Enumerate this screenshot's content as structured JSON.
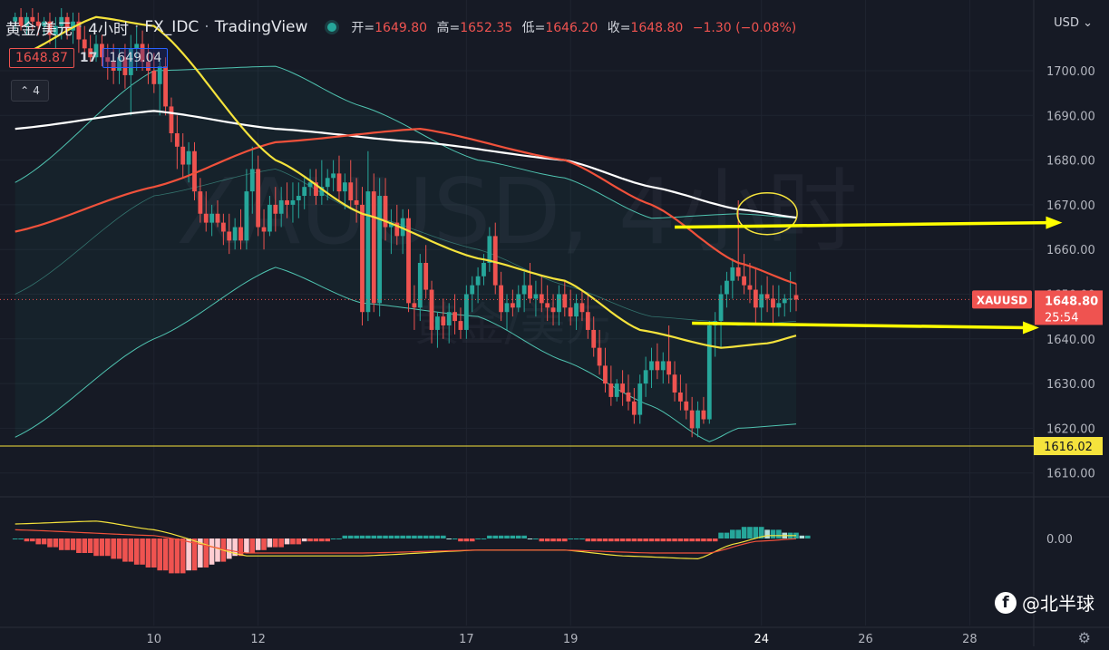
{
  "header": {
    "symbol_name": "黄金/美元",
    "interval": "4小时",
    "source": "FX_IDC",
    "platform": "TradingView",
    "ohlc": {
      "open_label": "开",
      "open": "1649.80",
      "high_label": "高",
      "high": "1652.35",
      "low_label": "低",
      "low": "1646.20",
      "close_label": "收",
      "close": "1648.80",
      "change": "−1.30 (−0.08%)"
    }
  },
  "quote": {
    "bid": "1648.87",
    "spread": "17",
    "ask": "1649.04"
  },
  "indicators_toggle": {
    "count": "4"
  },
  "currency_selector": "USD",
  "watermark": {
    "main": "XAUUSD, 4小时",
    "sub": "黄金/美元"
  },
  "brand": {
    "label": "@北半球"
  },
  "colors": {
    "background": "#161a25",
    "up": "#26a69a",
    "down": "#ef5350",
    "ma_white": "#ffffff",
    "ma_red": "#f0513b",
    "ma_yellow": "#f5e33c",
    "bollinger": "#4fc3b0",
    "arrow": "#ffff00",
    "hline": "#f5e33c"
  },
  "chart_data": [
    {
      "type": "candlestick",
      "title": "XAUUSD, 4小时",
      "y_axis": {
        "currency": "USD",
        "ticks": [
          1610,
          1620,
          1630,
          1640,
          1650,
          1660,
          1670,
          1680,
          1690,
          1700
        ],
        "ylim": [
          1604,
          1714
        ]
      },
      "x_axis": {
        "ticks": [
          {
            "label": "10",
            "index": 24
          },
          {
            "label": "12",
            "index": 42
          },
          {
            "label": "17",
            "index": 78
          },
          {
            "label": "19",
            "index": 96
          },
          {
            "label": "24",
            "index": 129
          },
          {
            "label": "26",
            "index": 147
          },
          {
            "label": "28",
            "index": 165
          }
        ]
      },
      "last_price": {
        "symbol": "XAUUSD",
        "value": "1648.80",
        "countdown": "25:54"
      },
      "horizontal_line": {
        "value": 1616.02,
        "label": "1616.02"
      },
      "annotations": [
        {
          "type": "ellipse",
          "at": {
            "index": 130,
            "value": 1668
          }
        },
        {
          "type": "arrow",
          "from": {
            "index": 114,
            "value": 1665
          },
          "to": {
            "index": 181,
            "value": 1666
          }
        },
        {
          "type": "arrow",
          "from": {
            "index": 117,
            "value": 1643.5
          },
          "to": {
            "index": 177,
            "value": 1642.5
          }
        }
      ],
      "candles_ohlc": [
        [
          1711,
          1713,
          1709,
          1712
        ],
        [
          1712,
          1714,
          1709,
          1710
        ],
        [
          1710,
          1713,
          1708,
          1712
        ],
        [
          1712,
          1714,
          1709,
          1711
        ],
        [
          1711,
          1713,
          1708,
          1710
        ],
        [
          1710,
          1712,
          1708,
          1711
        ],
        [
          1711,
          1713,
          1706,
          1708
        ],
        [
          1708,
          1712,
          1705,
          1710
        ],
        [
          1710,
          1714,
          1707,
          1712
        ],
        [
          1712,
          1713,
          1707,
          1709
        ],
        [
          1709,
          1713,
          1706,
          1711
        ],
        [
          1711,
          1713,
          1704,
          1707
        ],
        [
          1707,
          1710,
          1703,
          1705
        ],
        [
          1705,
          1708,
          1702,
          1703
        ],
        [
          1703,
          1708,
          1702,
          1706
        ],
        [
          1706,
          1708,
          1701,
          1703
        ],
        [
          1703,
          1706,
          1698,
          1702
        ],
        [
          1702,
          1706,
          1697,
          1700
        ],
        [
          1700,
          1705,
          1697,
          1703
        ],
        [
          1703,
          1706,
          1696,
          1699
        ],
        [
          1699,
          1708,
          1690,
          1705
        ],
        [
          1705,
          1710,
          1700,
          1706
        ],
        [
          1706,
          1709,
          1700,
          1702
        ],
        [
          1702,
          1706,
          1697,
          1700
        ],
        [
          1700,
          1704,
          1695,
          1697
        ],
        [
          1697,
          1703,
          1690,
          1701
        ],
        [
          1701,
          1703,
          1690,
          1692
        ],
        [
          1692,
          1694,
          1684,
          1686
        ],
        [
          1686,
          1690,
          1678,
          1683
        ],
        [
          1683,
          1686,
          1676,
          1679
        ],
        [
          1679,
          1684,
          1675,
          1682
        ],
        [
          1682,
          1684,
          1671,
          1673
        ],
        [
          1673,
          1676,
          1666,
          1668
        ],
        [
          1668,
          1673,
          1664,
          1666
        ],
        [
          1666,
          1670,
          1663,
          1668
        ],
        [
          1668,
          1671,
          1665,
          1666
        ],
        [
          1666,
          1668,
          1661,
          1664
        ],
        [
          1664,
          1668,
          1659,
          1662
        ],
        [
          1662,
          1667,
          1660,
          1665
        ],
        [
          1665,
          1669,
          1660,
          1662
        ],
        [
          1662,
          1678,
          1660,
          1673
        ],
        [
          1673,
          1683,
          1668,
          1678
        ],
        [
          1678,
          1681,
          1663,
          1665
        ],
        [
          1665,
          1669,
          1660,
          1664
        ],
        [
          1664,
          1672,
          1663,
          1670
        ],
        [
          1670,
          1674,
          1664,
          1668
        ],
        [
          1668,
          1674,
          1665,
          1671
        ],
        [
          1671,
          1675,
          1667,
          1670
        ],
        [
          1670,
          1675,
          1666,
          1671
        ],
        [
          1671,
          1675,
          1667,
          1672
        ],
        [
          1672,
          1676,
          1669,
          1674
        ],
        [
          1674,
          1678,
          1672,
          1675
        ],
        [
          1675,
          1678,
          1670,
          1672
        ],
        [
          1672,
          1680,
          1670,
          1674
        ],
        [
          1674,
          1678,
          1671,
          1676
        ],
        [
          1676,
          1680,
          1673,
          1677
        ],
        [
          1677,
          1681,
          1671,
          1673
        ],
        [
          1673,
          1677,
          1669,
          1675
        ],
        [
          1675,
          1680,
          1669,
          1671
        ],
        [
          1671,
          1676,
          1666,
          1670
        ],
        [
          1670,
          1674,
          1643,
          1646
        ],
        [
          1646,
          1682,
          1644,
          1673
        ],
        [
          1673,
          1677,
          1646,
          1648
        ],
        [
          1648,
          1676,
          1645,
          1672
        ],
        [
          1672,
          1676,
          1662,
          1665
        ],
        [
          1665,
          1669,
          1659,
          1666
        ],
        [
          1666,
          1670,
          1661,
          1663
        ],
        [
          1663,
          1669,
          1659,
          1667
        ],
        [
          1667,
          1669,
          1646,
          1648
        ],
        [
          1648,
          1652,
          1642,
          1647
        ],
        [
          1647,
          1659,
          1644,
          1657
        ],
        [
          1657,
          1661,
          1649,
          1651
        ],
        [
          1651,
          1653,
          1639,
          1642
        ],
        [
          1642,
          1646,
          1638,
          1645
        ],
        [
          1645,
          1649,
          1640,
          1643
        ],
        [
          1643,
          1648,
          1639,
          1646
        ],
        [
          1646,
          1650,
          1641,
          1644
        ],
        [
          1644,
          1647,
          1640,
          1642
        ],
        [
          1642,
          1652,
          1640,
          1650
        ],
        [
          1650,
          1654,
          1646,
          1652
        ],
        [
          1652,
          1656,
          1648,
          1654
        ],
        [
          1654,
          1659,
          1652,
          1657
        ],
        [
          1657,
          1665,
          1655,
          1663
        ],
        [
          1663,
          1666,
          1650,
          1652
        ],
        [
          1652,
          1655,
          1644,
          1646
        ],
        [
          1646,
          1650,
          1642,
          1648
        ],
        [
          1648,
          1651,
          1645,
          1647
        ],
        [
          1647,
          1652,
          1646,
          1650
        ],
        [
          1650,
          1655,
          1646,
          1652
        ],
        [
          1652,
          1657,
          1648,
          1649
        ],
        [
          1649,
          1653,
          1645,
          1650
        ],
        [
          1650,
          1654,
          1646,
          1648
        ],
        [
          1648,
          1652,
          1644,
          1647
        ],
        [
          1647,
          1650,
          1643,
          1646
        ],
        [
          1646,
          1652,
          1643,
          1650
        ],
        [
          1650,
          1653,
          1645,
          1647
        ],
        [
          1647,
          1651,
          1643,
          1645
        ],
        [
          1645,
          1650,
          1642,
          1648
        ],
        [
          1648,
          1651,
          1644,
          1646
        ],
        [
          1646,
          1650,
          1640,
          1642
        ],
        [
          1642,
          1645,
          1636,
          1638
        ],
        [
          1638,
          1642,
          1632,
          1634
        ],
        [
          1634,
          1638,
          1628,
          1630
        ],
        [
          1630,
          1634,
          1625,
          1627
        ],
        [
          1627,
          1631,
          1626,
          1630
        ],
        [
          1630,
          1633,
          1625,
          1628
        ],
        [
          1628,
          1632,
          1624,
          1626
        ],
        [
          1626,
          1629,
          1621,
          1623
        ],
        [
          1623,
          1632,
          1621,
          1630
        ],
        [
          1630,
          1636,
          1627,
          1633
        ],
        [
          1633,
          1638,
          1629,
          1635
        ],
        [
          1635,
          1639,
          1631,
          1633
        ],
        [
          1633,
          1637,
          1630,
          1635
        ],
        [
          1635,
          1643,
          1630,
          1632
        ],
        [
          1632,
          1635,
          1626,
          1628
        ],
        [
          1628,
          1632,
          1624,
          1626
        ],
        [
          1626,
          1630,
          1622,
          1624
        ],
        [
          1624,
          1627,
          1618,
          1620
        ],
        [
          1620,
          1626,
          1618,
          1624
        ],
        [
          1624,
          1627,
          1621,
          1622
        ],
        [
          1622,
          1644,
          1621,
          1643
        ],
        [
          1643,
          1646,
          1636,
          1644
        ],
        [
          1644,
          1652,
          1638,
          1650
        ],
        [
          1650,
          1655,
          1647,
          1653
        ],
        [
          1653,
          1658,
          1649,
          1656
        ],
        [
          1656,
          1671,
          1653,
          1654
        ],
        [
          1654,
          1659,
          1650,
          1652
        ],
        [
          1652,
          1657,
          1648,
          1651
        ],
        [
          1651,
          1656,
          1643,
          1647
        ],
        [
          1647,
          1652,
          1644,
          1650
        ],
        [
          1650,
          1654,
          1646,
          1649
        ],
        [
          1649,
          1652,
          1643,
          1647
        ],
        [
          1647,
          1652,
          1645,
          1648
        ],
        [
          1648,
          1650,
          1645,
          1649
        ],
        [
          1649,
          1655,
          1646,
          1649
        ],
        [
          1649.8,
          1652.35,
          1646.2,
          1648.8
        ]
      ],
      "moving_averages": [
        {
          "color": "white",
          "values_at": {
            "0": 1687,
            "24": 1691,
            "45": 1687,
            "70": 1684,
            "95": 1680,
            "110": 1674,
            "125": 1669,
            "136": 1667
          }
        },
        {
          "color": "red",
          "values_at": {
            "0": 1664,
            "24": 1674,
            "45": 1684,
            "70": 1687,
            "95": 1680,
            "110": 1670,
            "125": 1657,
            "136": 1652
          }
        },
        {
          "color": "yellow",
          "values_at": {
            "0": 1703,
            "14": 1712,
            "24": 1710,
            "45": 1680,
            "60": 1668,
            "80": 1658,
            "95": 1653,
            "108": 1642,
            "122": 1638,
            "130": 1639,
            "136": 1641
          }
        }
      ],
      "bollinger_bands": {
        "upper_at": {
          "0": 1675,
          "24": 1700,
          "45": 1701,
          "60": 1692,
          "80": 1680,
          "95": 1676,
          "110": 1667,
          "125": 1668,
          "136": 1667
        },
        "lower_at": {
          "0": 1618,
          "24": 1640,
          "45": 1656,
          "60": 1648,
          "80": 1645,
          "95": 1635,
          "110": 1625,
          "120": 1617,
          "125": 1620,
          "136": 1621
        },
        "basis_at": {
          "0": 1650,
          "24": 1672,
          "45": 1678,
          "60": 1668,
          "80": 1660,
          "95": 1652,
          "110": 1645,
          "120": 1644,
          "125": 1643,
          "136": 1644
        }
      }
    },
    {
      "type": "macd",
      "y_axis": {
        "ticks": [
          0
        ],
        "tick_labels": [
          "0.00"
        ]
      },
      "histogram": [
        0,
        0,
        -1,
        -1,
        -2,
        -2,
        -3,
        -3,
        -4,
        -4,
        -4,
        -5,
        -5,
        -5,
        -6,
        -6,
        -6,
        -7,
        -7,
        -8,
        -8,
        -9,
        -9,
        -10,
        -10,
        -11,
        -11,
        -12,
        -12,
        -12,
        -11,
        -11,
        -10,
        -10,
        -9,
        -8,
        -8,
        -7,
        -6,
        -6,
        -5,
        -5,
        -4,
        -4,
        -3,
        -3,
        -3,
        -2,
        -2,
        -2,
        -1,
        -1,
        -1,
        -1,
        -1,
        0,
        0,
        1,
        1,
        1,
        1,
        1,
        1,
        1,
        1,
        1,
        1,
        1,
        1,
        1,
        1,
        1,
        1,
        1,
        1,
        0,
        0,
        -1,
        -1,
        -1,
        0,
        0,
        1,
        1,
        1,
        1,
        1,
        1,
        1,
        0,
        0,
        -1,
        -1,
        -1,
        -1,
        -1,
        0,
        0,
        0,
        -1,
        -1,
        -1,
        -1,
        -1,
        -1,
        -1,
        -1,
        -1,
        -1,
        -1,
        -1,
        -1,
        -1,
        -1,
        -1,
        -1,
        -1,
        -1,
        -1,
        -1,
        -1,
        -1,
        2,
        2,
        3,
        3,
        4,
        4,
        4,
        4,
        3,
        3,
        3,
        2,
        2,
        2,
        1,
        1
      ],
      "macd_line_at": {
        "0": 5,
        "14": 6,
        "24": 3,
        "40": -6,
        "60": -6,
        "80": -4,
        "95": -4,
        "105": -6,
        "118": -7,
        "124": -2,
        "130": 1,
        "136": 1
      },
      "signal_line_at": {
        "0": 3,
        "24": 1,
        "40": -5,
        "60": -5,
        "80": -4,
        "95": -4,
        "110": -5,
        "120": -5,
        "128": -1,
        "136": 0
      }
    }
  ]
}
